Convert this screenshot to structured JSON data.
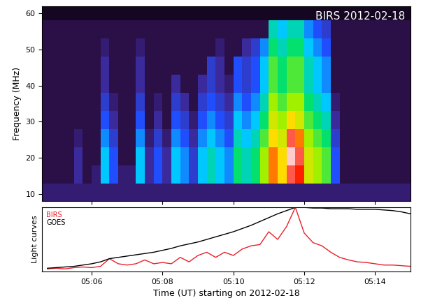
{
  "chart_data": [
    {
      "type": "heatmap",
      "annotation": "BIRS 2012-02-18",
      "y_label": "Frequency (MHz)",
      "x_edges": [
        4.5,
        4.75,
        5.0,
        5.25,
        5.5,
        5.75,
        6.0,
        6.25,
        6.5,
        6.75,
        7.0,
        7.25,
        7.5,
        7.75,
        8.0,
        8.25,
        8.5,
        8.75,
        9.0,
        9.25,
        9.5,
        9.75,
        10.0,
        10.25,
        10.5,
        10.75,
        11.0,
        11.25,
        11.5,
        11.75,
        12.0,
        12.25,
        12.5,
        12.75,
        13.0,
        13.25,
        13.5,
        13.75,
        14.0,
        14.25,
        14.5,
        14.75,
        15.0
      ],
      "y_edges": [
        8,
        13,
        18,
        23,
        28,
        33,
        38,
        43,
        48,
        53,
        58,
        62
      ],
      "cells": [
        [
          1.5,
          1.5,
          1.5,
          1.5,
          1.5,
          1.5,
          1.5,
          1.5,
          1.5,
          1.5,
          1.5,
          1.5,
          1.5,
          1.5,
          1.5,
          1.5,
          1.5,
          1.5,
          1.5,
          1.5,
          1.5,
          1.5,
          1.5,
          1.5,
          1.5,
          1.5,
          1.5,
          1.5,
          1.5,
          1.5,
          1.5,
          1.5,
          1.5,
          1.5,
          1.5,
          1.5,
          1.5,
          1.5,
          1.5,
          1.5,
          1.5,
          1.5
        ],
        [
          1,
          1,
          1,
          1,
          2,
          1,
          1.5,
          4,
          3,
          1.5,
          1.5,
          4,
          2,
          3,
          2,
          4,
          3.5,
          2.5,
          4,
          4.5,
          4,
          3.5,
          5,
          4.5,
          5,
          6,
          7.5,
          7,
          8.5,
          8,
          6.5,
          6,
          5.5,
          3,
          1,
          1,
          1,
          1,
          1,
          1,
          1,
          1
        ],
        [
          1,
          1,
          1,
          1,
          2,
          1,
          1,
          4,
          3,
          1,
          1,
          4,
          2,
          3,
          2,
          4,
          3.5,
          2.5,
          4,
          4.5,
          4,
          3.5,
          5,
          4.5,
          5,
          6,
          7.5,
          7,
          9.5,
          8.5,
          6.5,
          6,
          5.5,
          3,
          1,
          1,
          1,
          1,
          1,
          1,
          1,
          1
        ],
        [
          1,
          1,
          1,
          1,
          1.5,
          1,
          1,
          3.5,
          2.5,
          1,
          1,
          3.5,
          1.5,
          2.5,
          1.5,
          3.5,
          3,
          2,
          3.5,
          4,
          3.5,
          3,
          4.5,
          4,
          4.5,
          5.5,
          7,
          6.5,
          8.5,
          7.5,
          6,
          5.5,
          5,
          2.5,
          1,
          1,
          1,
          1,
          1,
          1,
          1,
          1
        ],
        [
          1,
          1,
          1,
          1,
          1,
          1,
          1,
          3,
          2,
          1,
          1,
          3,
          1,
          2,
          1,
          3,
          2.5,
          1.5,
          3,
          3.5,
          3,
          2.5,
          4,
          3.5,
          4,
          5,
          6.5,
          6,
          7,
          6.5,
          5.5,
          5,
          4.5,
          2,
          1,
          1,
          1,
          1,
          1,
          1,
          1,
          1
        ],
        [
          1,
          1,
          1,
          1,
          1,
          1,
          1,
          2.5,
          1.5,
          1,
          1,
          2.5,
          1,
          1.5,
          1,
          2.5,
          2,
          1,
          2.5,
          3,
          2.5,
          2,
          3.5,
          3,
          3.5,
          4.5,
          6,
          5.5,
          6,
          6,
          5,
          4.5,
          4,
          1.5,
          1,
          1,
          1,
          1,
          1,
          1,
          1,
          1
        ],
        [
          1,
          1,
          1,
          1,
          1,
          1,
          1,
          2,
          1,
          1,
          1,
          2,
          1,
          1,
          1,
          2,
          1,
          1,
          2,
          2.5,
          2,
          1.5,
          3,
          2.5,
          3,
          4,
          5.5,
          5,
          5.5,
          5.5,
          4.5,
          4,
          3.5,
          1,
          1,
          1,
          1,
          1,
          1,
          1,
          1,
          1
        ],
        [
          1,
          1,
          1,
          1,
          1,
          1,
          1,
          2,
          1,
          1,
          1,
          2,
          1,
          1,
          1,
          1,
          1,
          1,
          1,
          2.5,
          2,
          1,
          3,
          2.5,
          3,
          4,
          5.5,
          5,
          5.5,
          5.5,
          4.5,
          4,
          3.5,
          1,
          1,
          1,
          1,
          1,
          1,
          1,
          1,
          1
        ],
        [
          1,
          1,
          1,
          1,
          1,
          1,
          1,
          1.5,
          1,
          1,
          1,
          1.5,
          1,
          1,
          1,
          1,
          1,
          1,
          1,
          1,
          1.5,
          1,
          1,
          2,
          2.5,
          3.5,
          5,
          4.5,
          5,
          5,
          4,
          3.5,
          3,
          1,
          1,
          1,
          1,
          1,
          1,
          1,
          1,
          1
        ],
        [
          1,
          1,
          1,
          1,
          1,
          1,
          1,
          1,
          1,
          1,
          1,
          1,
          1,
          1,
          1,
          1,
          1,
          1,
          1,
          1,
          1,
          1,
          1,
          1,
          1,
          1,
          4.5,
          4,
          4.5,
          4.5,
          3.5,
          3,
          2.5,
          1,
          1,
          1,
          1,
          1,
          1,
          1,
          1,
          1
        ],
        [
          0.5,
          0.5,
          0.5,
          0.5,
          0.5,
          0.5,
          0.5,
          0.5,
          0.5,
          0.5,
          0.5,
          0.5,
          0.5,
          0.5,
          0.5,
          0.5,
          0.5,
          0.5,
          0.5,
          0.5,
          0.5,
          0.5,
          0.5,
          0.5,
          0.5,
          0.5,
          0.5,
          0.5,
          0.5,
          0.5,
          0.5,
          0.5,
          0.5,
          0.5,
          0.5,
          0.5,
          0.5,
          0.5,
          0.5,
          0.5,
          0.5,
          0.5
        ]
      ],
      "zlim": [
        0,
        10
      ],
      "xlim": [
        4.6,
        15.0
      ],
      "xticks": [
        {
          "value": 6,
          "label": "05:06"
        },
        {
          "value": 8,
          "label": "05:08"
        },
        {
          "value": 10,
          "label": "05:10"
        },
        {
          "value": 12,
          "label": "05:12"
        },
        {
          "value": 14,
          "label": "05:14"
        }
      ],
      "ylim": [
        8,
        62
      ],
      "yticks": [
        10,
        20,
        30,
        40,
        50,
        60
      ],
      "tick_labels": "y"
    },
    {
      "type": "line",
      "x_label": "Time (UT) starting on 2012-02-18",
      "y_label": "Light curves",
      "x": [
        4.75,
        5.0,
        5.25,
        5.5,
        5.75,
        6.0,
        6.25,
        6.5,
        6.75,
        7.0,
        7.25,
        7.5,
        7.75,
        8.0,
        8.25,
        8.5,
        8.75,
        9.0,
        9.25,
        9.5,
        9.75,
        10.0,
        10.25,
        10.5,
        10.75,
        11.0,
        11.25,
        11.5,
        11.75,
        12.0,
        12.25,
        12.5,
        12.75,
        13.0,
        13.25,
        13.5,
        13.75,
        14.0,
        14.25,
        14.5,
        14.75,
        15.0
      ],
      "series": [
        {
          "name": "BIRS",
          "color": "#e8202a",
          "values": [
            0.04,
            0.05,
            0.04,
            0.06,
            0.07,
            0.06,
            0.08,
            0.2,
            0.12,
            0.1,
            0.12,
            0.18,
            0.12,
            0.14,
            0.12,
            0.22,
            0.15,
            0.25,
            0.3,
            0.22,
            0.3,
            0.25,
            0.35,
            0.4,
            0.42,
            0.62,
            0.5,
            0.7,
            1.0,
            0.6,
            0.45,
            0.4,
            0.3,
            0.22,
            0.18,
            0.15,
            0.14,
            0.12,
            0.1,
            0.1,
            0.09,
            0.08
          ]
        },
        {
          "name": "GOES",
          "color": "#000000",
          "values": [
            0.05,
            0.06,
            0.07,
            0.08,
            0.1,
            0.12,
            0.15,
            0.2,
            0.22,
            0.24,
            0.26,
            0.28,
            0.3,
            0.33,
            0.36,
            0.4,
            0.43,
            0.46,
            0.5,
            0.54,
            0.58,
            0.62,
            0.67,
            0.72,
            0.78,
            0.84,
            0.9,
            0.95,
            1.0,
            1.0,
            0.99,
            0.99,
            0.98,
            0.98,
            0.98,
            0.97,
            0.97,
            0.97,
            0.96,
            0.95,
            0.93,
            0.9
          ]
        }
      ],
      "xlim": [
        4.6,
        15.0
      ],
      "xticks": [
        {
          "value": 6,
          "label": "05:06"
        },
        {
          "value": 8,
          "label": "05:08"
        },
        {
          "value": 10,
          "label": "05:10"
        },
        {
          "value": 12,
          "label": "05:12"
        },
        {
          "value": 14,
          "label": "05:14"
        }
      ],
      "ylim": [
        0,
        1
      ],
      "yticks": [],
      "legend": "upper left",
      "tick_labels": "x"
    }
  ]
}
